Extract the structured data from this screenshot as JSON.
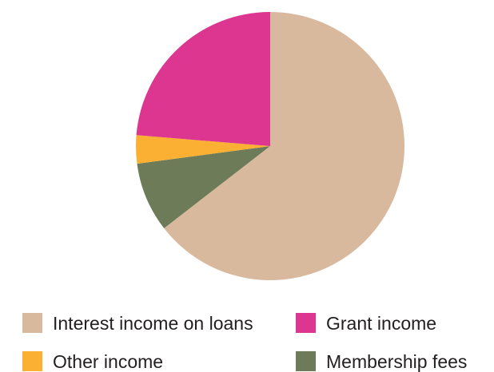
{
  "chart_data": {
    "type": "pie",
    "title": "",
    "slices": [
      {
        "label": "Interest income on loans",
        "value": 64.5,
        "color": "#d9b99e"
      },
      {
        "label": "Membership fees",
        "value": 8.4,
        "color": "#6e7b59"
      },
      {
        "label": "Other income",
        "value": 3.4,
        "color": "#fbb034"
      },
      {
        "label": "Grant income",
        "value": 23.7,
        "color": "#dc3691"
      }
    ],
    "legend": {
      "placement": "bottom",
      "entries": [
        {
          "label": "Interest income on loans",
          "color": "#d9b99e"
        },
        {
          "label": "Grant income",
          "color": "#dc3691"
        },
        {
          "label": "Other income",
          "color": "#fbb034"
        },
        {
          "label": "Membership fees",
          "color": "#6e7b59"
        }
      ]
    }
  }
}
